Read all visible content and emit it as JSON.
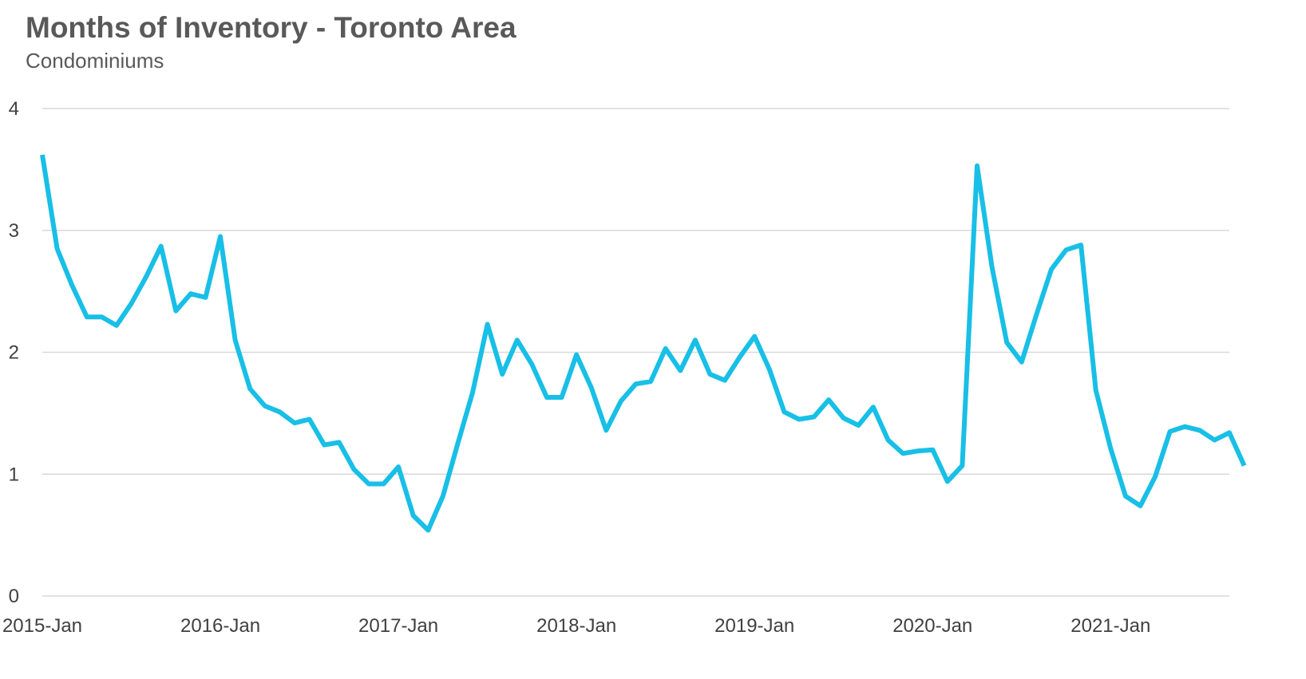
{
  "chart_data": {
    "type": "line",
    "title": "Months of Inventory - Toronto Area",
    "subtitle": "Condominiums",
    "xlabel": "",
    "ylabel": "",
    "ylim": [
      0,
      4
    ],
    "yticks": [
      0,
      1,
      2,
      3,
      4
    ],
    "xtick_labels": [
      "2015-Jan",
      "2016-Jan",
      "2017-Jan",
      "2018-Jan",
      "2019-Jan",
      "2020-Jan",
      "2021-Jan"
    ],
    "x_start": "2015-01",
    "x_end": "2021-09",
    "grid": "horizontal",
    "legend": "none",
    "series": [
      {
        "color": "#18BFE6",
        "values": [
          3.62,
          2.85,
          2.55,
          2.29,
          2.29,
          2.22,
          2.4,
          2.62,
          2.87,
          2.34,
          2.48,
          2.45,
          2.95,
          2.1,
          1.7,
          1.56,
          1.51,
          1.42,
          1.45,
          1.24,
          1.26,
          1.04,
          0.92,
          0.92,
          1.06,
          0.66,
          0.54,
          0.82,
          1.25,
          1.67,
          2.23,
          1.82,
          2.1,
          1.9,
          1.63,
          1.63,
          1.98,
          1.71,
          1.36,
          1.6,
          1.74,
          1.76,
          2.03,
          1.85,
          2.1,
          1.82,
          1.77,
          1.96,
          2.13,
          1.86,
          1.51,
          1.45,
          1.47,
          1.61,
          1.46,
          1.4,
          1.55,
          1.28,
          1.17,
          1.19,
          1.2,
          0.94,
          1.07,
          3.53,
          2.7,
          2.08,
          1.92,
          2.31,
          2.68,
          2.84,
          2.88,
          1.69,
          1.21,
          0.82,
          0.74,
          0.98,
          1.35,
          1.39,
          1.36,
          1.28,
          1.34,
          1.07
        ]
      }
    ]
  }
}
